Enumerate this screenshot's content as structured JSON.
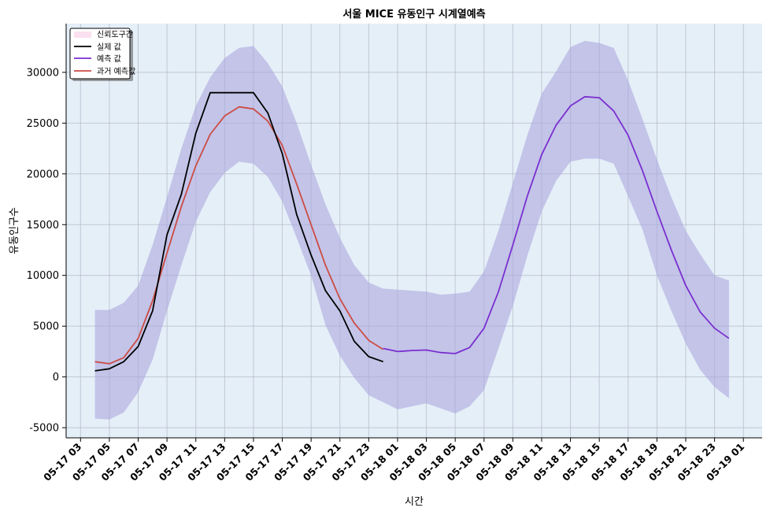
{
  "chart_data": {
    "type": "line",
    "title": "서울 MICE 유동인구 시계열예측",
    "xlabel": "시간",
    "ylabel": "유동인구수",
    "ylim": [
      -6000,
      34800
    ],
    "y_ticks": [
      -5000,
      0,
      5000,
      10000,
      15000,
      20000,
      25000,
      30000
    ],
    "x_range_hours": [
      2,
      26
    ],
    "x_ticks": [
      {
        "h": 3,
        "label": "05-17 03"
      },
      {
        "h": 5,
        "label": "05-17 05"
      },
      {
        "h": 7,
        "label": "05-17 07"
      },
      {
        "h": 9,
        "label": "05-17 09"
      },
      {
        "h": 11,
        "label": "05-17 11"
      },
      {
        "h": 13,
        "label": "05-17 13"
      },
      {
        "h": 15,
        "label": "05-17 15"
      },
      {
        "h": 17,
        "label": "05-17 17"
      },
      {
        "h": 19,
        "label": "05-17 19"
      },
      {
        "h": 21,
        "label": "05-17 21"
      },
      {
        "h": 23,
        "label": "05-17 23"
      },
      {
        "h": 25,
        "label": "05-18 01"
      },
      {
        "h": 27,
        "label": "05-18 03"
      },
      {
        "h": 29,
        "label": "05-18 05"
      },
      {
        "h": 31,
        "label": "05-18 07"
      },
      {
        "h": 33,
        "label": "05-18 09"
      },
      {
        "h": 35,
        "label": "05-18 11"
      },
      {
        "h": 37,
        "label": "05-18 13"
      },
      {
        "h": 39,
        "label": "05-18 15"
      },
      {
        "h": 41,
        "label": "05-18 17"
      },
      {
        "h": 43,
        "label": "05-18 19"
      },
      {
        "h": 45,
        "label": "05-18 21"
      },
      {
        "h": 47,
        "label": "05-18 23"
      },
      {
        "h": 49,
        "label": "05-19 01"
      }
    ],
    "grid": true,
    "legend_position": "top-left",
    "legend": [
      "신뢰도구간",
      "실제 값",
      "예측 값",
      "과거 예측값"
    ],
    "colors": {
      "background": "#e5eff8",
      "band": "#aba6dd",
      "actual": "#000000",
      "forecast": "#7b2fd0",
      "past_forecast": "#cc4c44",
      "legend_band_patch": "#fbe0f0"
    },
    "series": [
      {
        "name": "신뢰도구간",
        "type": "band",
        "x": [
          4,
          5,
          6,
          7,
          8,
          9,
          10,
          11,
          12,
          13,
          14,
          15,
          16,
          17,
          18,
          19,
          20,
          21,
          22,
          23,
          24,
          25,
          26,
          27,
          28,
          29,
          30,
          31,
          32,
          33,
          34,
          35,
          36,
          37,
          38,
          39,
          40,
          41,
          42,
          43,
          44,
          45,
          46,
          47,
          48
        ],
        "lower": [
          -4100,
          -4200,
          -3500,
          -1500,
          1700,
          6500,
          11000,
          15300,
          18200,
          20100,
          21200,
          21000,
          19700,
          17300,
          13700,
          10000,
          5100,
          2100,
          -100,
          -1800,
          -2500,
          -3200,
          -2900,
          -2600,
          -3100,
          -3600,
          -2900,
          -1300,
          2800,
          7000,
          11900,
          16300,
          19300,
          21200,
          21500,
          21500,
          21000,
          17800,
          14500,
          10000,
          6500,
          3300,
          700,
          -1000,
          -2100
        ],
        "upper": [
          6600,
          6600,
          7300,
          9000,
          13000,
          17700,
          22500,
          26700,
          29500,
          31400,
          32400,
          32600,
          30900,
          28600,
          25000,
          20900,
          17000,
          13700,
          11000,
          9300,
          8700,
          8600,
          8500,
          8400,
          8100,
          8200,
          8400,
          10400,
          14400,
          19100,
          23800,
          27900,
          30100,
          32500,
          33100,
          32900,
          32400,
          29200,
          25400,
          21400,
          17700,
          14400,
          12100,
          10000,
          9500
        ]
      },
      {
        "name": "실제 값",
        "x": [
          4,
          5,
          6,
          7,
          8,
          9,
          10,
          11,
          12,
          13,
          14,
          15,
          16,
          17,
          18,
          19,
          20,
          21,
          22,
          23,
          24
        ],
        "values": [
          600,
          800,
          1500,
          3000,
          6500,
          14000,
          18000,
          24000,
          28000,
          28000,
          28000,
          28000,
          26000,
          22000,
          16000,
          12000,
          8500,
          6500,
          3500,
          2000,
          1500
        ]
      },
      {
        "name": "예측 값",
        "x": [
          24,
          25,
          26,
          27,
          28,
          29,
          30,
          31,
          32,
          33,
          34,
          35,
          36,
          37,
          38,
          39,
          40,
          41,
          42,
          43,
          44,
          45,
          46,
          47,
          48
        ],
        "values": [
          2800,
          2500,
          2600,
          2650,
          2400,
          2300,
          2900,
          4800,
          8400,
          13000,
          17800,
          21900,
          24800,
          26700,
          27600,
          27500,
          26200,
          23800,
          20300,
          16300,
          12500,
          9000,
          6400,
          4800,
          3800
        ]
      },
      {
        "name": "과거 예측값",
        "x": [
          4,
          5,
          6,
          7,
          8,
          9,
          10,
          11,
          12,
          13,
          14,
          15,
          16,
          17,
          18,
          19,
          20,
          21,
          22,
          23,
          24
        ],
        "values": [
          1500,
          1300,
          1900,
          3800,
          7500,
          12200,
          16800,
          20800,
          23900,
          25700,
          26600,
          26400,
          25200,
          22800,
          19000,
          15000,
          11000,
          7700,
          5300,
          3600,
          2700
        ]
      }
    ]
  }
}
